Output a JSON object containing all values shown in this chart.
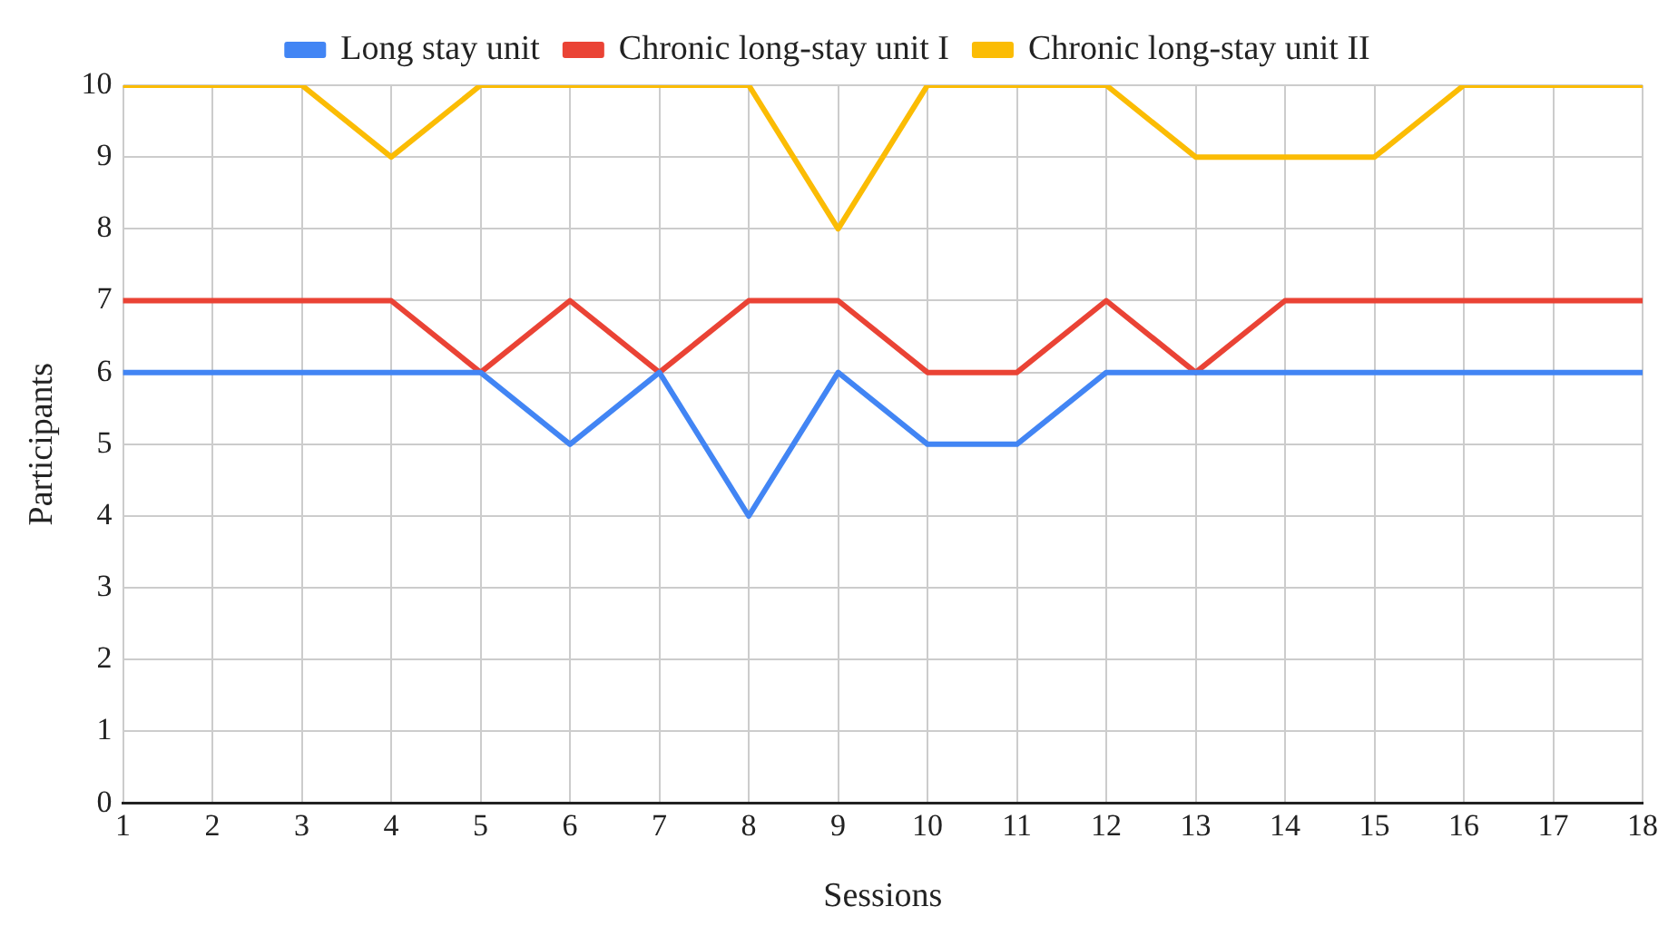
{
  "chart_data": {
    "type": "line",
    "xlabel": "Sessions",
    "ylabel": "Participants",
    "x": [
      1,
      2,
      3,
      4,
      5,
      6,
      7,
      8,
      9,
      10,
      11,
      12,
      13,
      14,
      15,
      16,
      17,
      18
    ],
    "series": [
      {
        "name": "Long stay unit",
        "color": "#4285f4",
        "values": [
          6,
          6,
          6,
          6,
          6,
          5,
          6,
          4,
          6,
          5,
          5,
          6,
          6,
          6,
          6,
          6,
          6,
          6
        ]
      },
      {
        "name": "Chronic long-stay unit I",
        "color": "#ea4335",
        "values": [
          7,
          7,
          7,
          7,
          6,
          7,
          6,
          7,
          7,
          6,
          6,
          7,
          6,
          7,
          7,
          7,
          7,
          7
        ]
      },
      {
        "name": "Chronic long-stay unit II",
        "color": "#fbbc04",
        "values": [
          10,
          10,
          10,
          9,
          10,
          10,
          10,
          10,
          8,
          10,
          10,
          10,
          9,
          9,
          9,
          10,
          10,
          10
        ]
      }
    ],
    "xlim": [
      1,
      18
    ],
    "xticks": [
      1,
      2,
      3,
      4,
      5,
      6,
      7,
      8,
      9,
      10,
      11,
      12,
      13,
      14,
      15,
      16,
      17,
      18
    ],
    "ylim": [
      0,
      10
    ],
    "yticks": [
      0,
      1,
      2,
      3,
      4,
      5,
      6,
      7,
      8,
      9,
      10
    ],
    "grid": true,
    "legend": "top",
    "marker": "none",
    "line_style": "solid"
  }
}
